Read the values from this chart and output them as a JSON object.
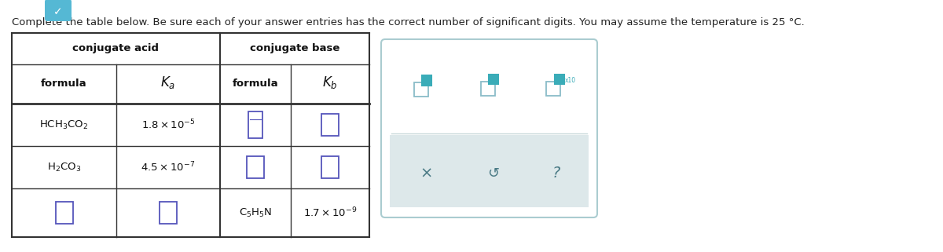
{
  "title_text": "Complete the table below. Be sure each of your answer entries has the correct number of significant digits. You may assume the temperature is 25 °C.",
  "bg": "#ffffff",
  "border_color": "#333333",
  "input_color": "#5555bb",
  "teal_color": "#3aacb8",
  "teal_light": "#5bbfc9",
  "widget_border": "#aaccd0",
  "widget_bg": "#ffffff",
  "widget_lower_bg": "#dde8ea",
  "symbol_color": "#4a7a85",
  "rows": [
    {
      "acid_formula": "HCH_3CO_2",
      "acid_ka_coeff": "1.8",
      "acid_ka_exp": "-5",
      "base_formula_input": true,
      "base_kb_input": true
    },
    {
      "acid_formula": "H_2CO_3",
      "acid_ka_coeff": "4.5",
      "acid_ka_exp": "-7",
      "base_formula_input": true,
      "base_kb_input": true
    },
    {
      "acid_formula_input": true,
      "acid_ka_input": true,
      "base_formula": "C_5H_5N",
      "base_kb_coeff": "1.7",
      "base_kb_exp": "-9"
    }
  ]
}
